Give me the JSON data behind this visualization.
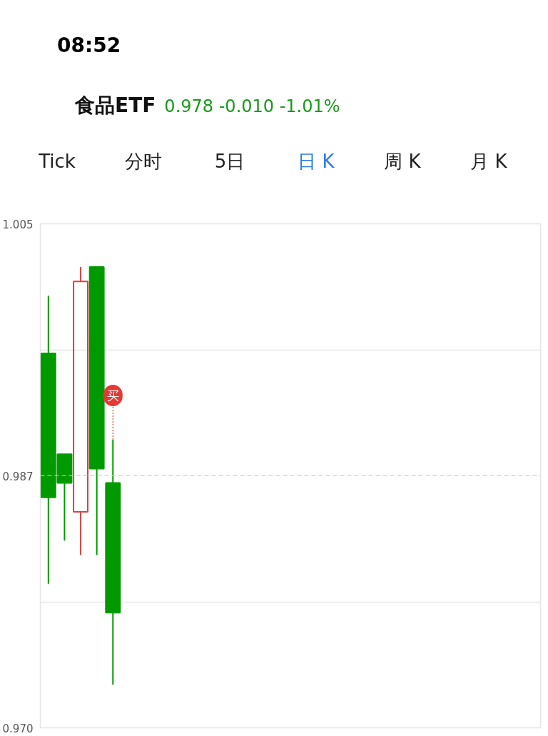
{
  "chart_data": {
    "type": "candlestick",
    "title": "食品ETF",
    "subtitle": "0.978 -0.010 -1.01%",
    "annotations": [
      "08:52",
      "Tick",
      "分时",
      "5日",
      "日 K",
      "周 K",
      "月 K",
      {
        "text": "买",
        "y": 0.99
      }
    ],
    "categories": [
      null,
      null,
      null,
      null,
      null,
      null,
      null,
      null,
      null,
      null,
      null,
      null,
      null,
      null,
      null,
      null,
      null,
      null,
      null,
      null,
      null,
      null,
      null,
      null,
      null,
      null,
      null,
      null,
      null,
      null,
      null
    ],
    "ohlc": [
      [
        0.996,
        1.0,
        0.98,
        0.986
      ],
      [
        0.989,
        0.989,
        0.983,
        0.987
      ],
      [
        0.985,
        1.002,
        0.982,
        1.001
      ],
      [
        1.002,
        1.002,
        0.982,
        0.988
      ],
      [
        0.987,
        0.99,
        0.973,
        0.978
      ],
      null,
      null,
      null,
      null,
      null,
      null,
      null,
      null,
      null,
      null,
      null,
      null,
      null,
      null,
      null,
      null,
      null,
      null,
      null,
      null,
      null,
      null,
      null,
      null,
      null,
      null
    ],
    "colors": [
      "#009a00",
      "#009a00",
      "#e0403c",
      "#009a00",
      "#009a00",
      null,
      null,
      null,
      null,
      null,
      null,
      null,
      null,
      null,
      null,
      null,
      null,
      null,
      null,
      null,
      null,
      null,
      null,
      null,
      null,
      null,
      null,
      null,
      null,
      null,
      null
    ],
    "ylim": [
      0.97,
      1.005
    ],
    "yticks": [
      {
        "value": 1.005,
        "label": "1.005"
      },
      {
        "value": 0.99625,
        "label": null
      },
      {
        "value": 0.97875,
        "label": null
      },
      {
        "value": 0.97,
        "label": "0.970"
      }
    ],
    "grid": "y",
    "ref_lines": [
      {
        "axis": "y",
        "value": 0.9875,
        "label": "0.987",
        "color": "#c8c8c8",
        "line_style": "dashed"
      }
    ]
  }
}
